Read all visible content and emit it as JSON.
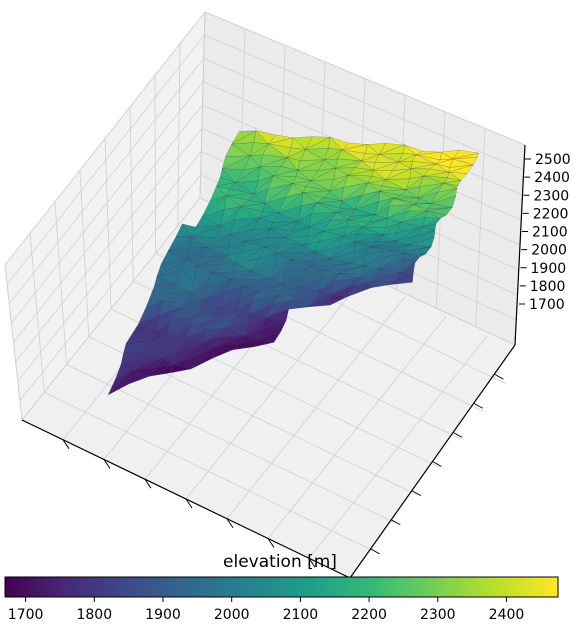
{
  "chart_data": {
    "type": "surface3d",
    "title": "",
    "zlabel": "",
    "ztick_labels": [
      "1700",
      "1800",
      "1900",
      "2000",
      "2100",
      "2200",
      "2300",
      "2400",
      "2500"
    ],
    "zlim": [
      1650,
      2520
    ],
    "grid": true,
    "colormap": "viridis",
    "colormap_stops": [
      "#440154",
      "#482878",
      "#3e4989",
      "#31688e",
      "#26828e",
      "#1f9e89",
      "#35b779",
      "#6ece58",
      "#b5de2b",
      "#fde725"
    ],
    "colorbar": {
      "label": "elevation [m]",
      "range": [
        1670,
        2475
      ],
      "tick_labels": [
        "1700",
        "1800",
        "1900",
        "2000",
        "2100",
        "2200",
        "2300",
        "2400"
      ],
      "orientation": "horizontal",
      "placement": "bottom"
    },
    "surface": {
      "description_values_only": true,
      "lowest_elevation_m": 1680,
      "highest_elevation_m": 2470,
      "high_region": "upper-right ridge",
      "low_region": "lower-left valley"
    }
  }
}
